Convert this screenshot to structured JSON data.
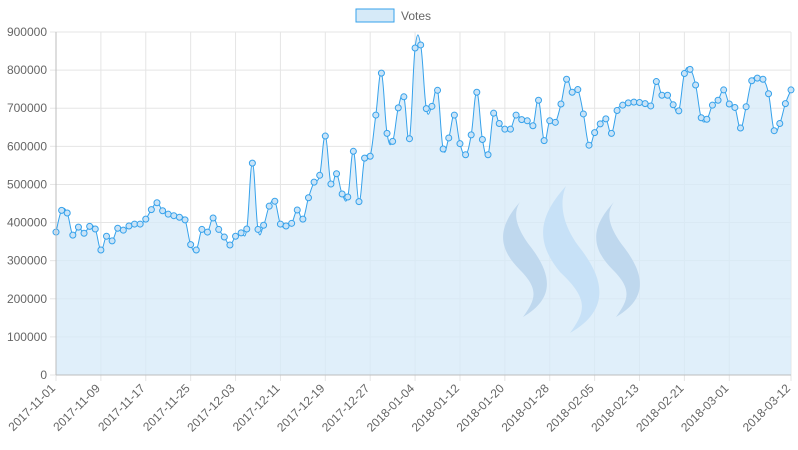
{
  "chart_data": {
    "type": "line",
    "fill": true,
    "title": "",
    "xlabel": "",
    "ylabel": "",
    "legend": {
      "position": "top",
      "entries": [
        "Votes"
      ]
    },
    "grid": true,
    "ylim": [
      0,
      900000
    ],
    "y_ticks": [
      "0",
      "100000",
      "200000",
      "300000",
      "400000",
      "500000",
      "600000",
      "700000",
      "800000",
      "900000"
    ],
    "x_range": [
      "2017-11-01",
      "2018-03-12"
    ],
    "x_ticks": [
      "2017-11-01",
      "2017-11-09",
      "2017-11-17",
      "2017-11-25",
      "2017-12-03",
      "2017-12-11",
      "2017-12-19",
      "2017-12-27",
      "2018-01-04",
      "2018-01-12",
      "2018-01-20",
      "2018-01-28",
      "2018-02-05",
      "2018-02-13",
      "2018-02-21",
      "2018-03-01",
      "2018-03-12"
    ],
    "series": [
      {
        "name": "Votes",
        "values": [
          375000,
          432000,
          425000,
          367000,
          388000,
          372000,
          390000,
          383000,
          328000,
          364000,
          352000,
          385000,
          380000,
          391000,
          396000,
          396000,
          409000,
          434000,
          452000,
          431000,
          422000,
          418000,
          414000,
          407000,
          342000,
          328000,
          382000,
          375000,
          412000,
          382000,
          362000,
          341000,
          364000,
          373000,
          383000,
          556000,
          382000,
          393000,
          443000,
          456000,
          396000,
          391000,
          398000,
          433000,
          409000,
          465000,
          506000,
          524000,
          627000,
          501000,
          528000,
          475000,
          467000,
          587000,
          455000,
          569000,
          574000,
          682000,
          792000,
          634000,
          613000,
          701000,
          730000,
          620000,
          858000,
          866000,
          699000,
          705000,
          747000,
          593000,
          622000,
          682000,
          607000,
          578000,
          630000,
          742000,
          618000,
          578000,
          687000,
          660000,
          645000,
          645000,
          682000,
          670000,
          667000,
          654000,
          721000,
          615000,
          667000,
          663000,
          711000,
          776000,
          742000,
          749000,
          685000,
          603000,
          636000,
          659000,
          672000,
          634000,
          694000,
          708000,
          714000,
          716000,
          715000,
          712000,
          706000,
          770000,
          734000,
          734000,
          709000,
          693000,
          791000,
          802000,
          761000,
          675000,
          671000,
          708000,
          721000,
          748000,
          711000,
          702000,
          648000,
          704000,
          772000,
          779000,
          776000,
          738000,
          641000,
          660000,
          712000,
          748000
        ]
      }
    ],
    "colors": {
      "line": "#36a2eb",
      "fill": "#d6eaf8",
      "grid": "#e5e5e5",
      "axis": "#bdbdbd",
      "text": "#666666"
    },
    "watermark": {
      "name": "steem-logo-watermark",
      "colors": [
        "#7ea2cf",
        "#9cc8f2"
      ]
    }
  }
}
